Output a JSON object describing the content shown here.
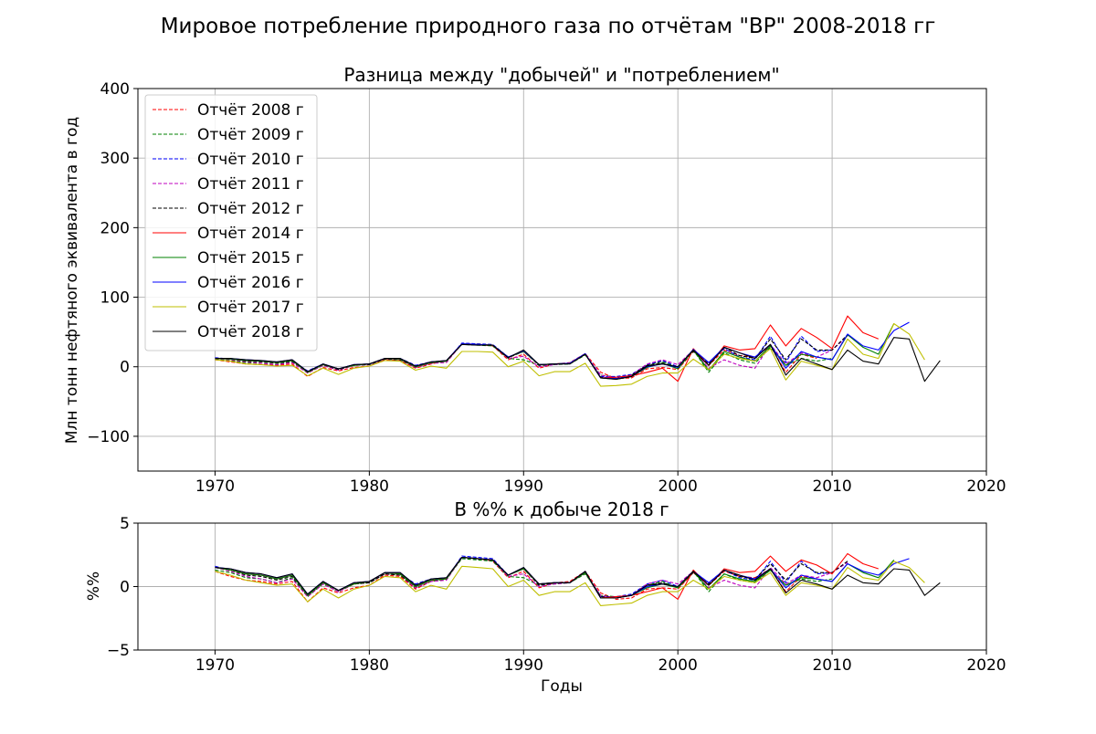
{
  "figure": {
    "suptitle": "Мировое потребление природного газа по отчётам \"BP\" 2008-2018 гг"
  },
  "series_styles": [
    {
      "name": "Отчёт 2008 г",
      "color": "#ff0000",
      "dashed": true
    },
    {
      "name": "Отчёт 2009 г",
      "color": "#008000",
      "dashed": true
    },
    {
      "name": "Отчёт 2010 г",
      "color": "#0000ff",
      "dashed": true
    },
    {
      "name": "Отчёт 2011 г",
      "color": "#bf00bf",
      "dashed": true
    },
    {
      "name": "Отчёт 2012 г",
      "color": "#000000",
      "dashed": true
    },
    {
      "name": "Отчёт 2014 г",
      "color": "#ff0000",
      "dashed": false
    },
    {
      "name": "Отчёт 2015 г",
      "color": "#008000",
      "dashed": false
    },
    {
      "name": "Отчёт 2016 г",
      "color": "#0000ff",
      "dashed": false
    },
    {
      "name": "Отчёт 2017 г",
      "color": "#bfbf00",
      "dashed": false
    },
    {
      "name": "Отчёт 2018 г",
      "color": "#000000",
      "dashed": false
    }
  ],
  "chart_data": [
    {
      "type": "line",
      "title": "Разница между \"добычей\" и \"потреблением\"",
      "xlabel": "",
      "ylabel": "Млн тонн нефтяного эквивалента в год",
      "xlim": [
        1965,
        2020
      ],
      "ylim": [
        -150,
        400
      ],
      "xticks": [
        1970,
        1980,
        1990,
        2000,
        2010,
        2020
      ],
      "yticks": [
        -100,
        0,
        100,
        200,
        300,
        400
      ],
      "ytick_labels": [
        "−100",
        "0",
        "100",
        "200",
        "300",
        "400"
      ],
      "grid": true,
      "legend": "upper-left",
      "x_start": 1970,
      "series": [
        {
          "name": "Отчёт 2008 г",
          "values": [
            10,
            7,
            4,
            3,
            2,
            4,
            -14,
            -1,
            -6,
            -1,
            1,
            10,
            9,
            -2,
            4,
            9,
            33,
            32,
            30,
            10,
            18,
            -2,
            4,
            6,
            19,
            -8,
            -17,
            -16,
            -3,
            -1,
            -4,
            22,
            2,
            24,
            16,
            14,
            30,
            -8,
            18,
            12
          ]
        },
        {
          "name": "Отчёт 2009 г",
          "values": [
            11,
            9,
            6,
            5,
            3,
            7,
            -9,
            2,
            -4,
            2,
            3,
            11,
            10,
            -1,
            5,
            8,
            32,
            31,
            30,
            12,
            10,
            2,
            3,
            4,
            17,
            -12,
            -15,
            -13,
            2,
            8,
            -1,
            24,
            -8,
            20,
            10,
            5,
            28,
            2,
            12,
            8,
            12
          ]
        },
        {
          "name": "Отчёт 2010 г",
          "values": [
            13,
            11,
            9,
            8,
            6,
            9,
            -6,
            4,
            -3,
            3,
            4,
            12,
            12,
            2,
            7,
            8,
            34,
            33,
            32,
            14,
            22,
            3,
            4,
            5,
            18,
            -14,
            -14,
            -11,
            3,
            9,
            0,
            24,
            6,
            26,
            14,
            10,
            44,
            6,
            44,
            22,
            24
          ]
        },
        {
          "name": "Отчёт 2011 г",
          "values": [
            12,
            10,
            7,
            5,
            3,
            6,
            -9,
            2,
            -5,
            2,
            3,
            11,
            10,
            -1,
            5,
            6,
            33,
            32,
            31,
            12,
            15,
            0,
            3,
            5,
            18,
            -12,
            -16,
            -12,
            4,
            10,
            3,
            24,
            -2,
            10,
            2,
            -2,
            32,
            4,
            20,
            14,
            24,
            44
          ]
        },
        {
          "name": "Отчёт 2012 г",
          "values": [
            12,
            11,
            8,
            7,
            5,
            8,
            -7,
            3,
            -4,
            2,
            3,
            11,
            10,
            0,
            6,
            8,
            33,
            32,
            31,
            13,
            22,
            2,
            4,
            5,
            18,
            -15,
            -17,
            -12,
            2,
            6,
            -2,
            22,
            4,
            28,
            16,
            12,
            40,
            10,
            40,
            24,
            24,
            46
          ]
        },
        {
          "name": "Отчёт 2014 г",
          "values": [
            12,
            11,
            9,
            8,
            6,
            9,
            -8,
            3,
            -3,
            2,
            4,
            12,
            11,
            0,
            6,
            8,
            33,
            32,
            31,
            14,
            22,
            3,
            4,
            5,
            18,
            -16,
            -15,
            -13,
            -8,
            -2,
            -21,
            26,
            2,
            30,
            24,
            26,
            60,
            30,
            55,
            42,
            26,
            73,
            49,
            40
          ]
        },
        {
          "name": "Отчёт 2015 г",
          "values": [
            12,
            11,
            9,
            8,
            6,
            9,
            -8,
            3,
            -3,
            2,
            4,
            12,
            11,
            0,
            6,
            8,
            33,
            32,
            31,
            14,
            22,
            3,
            4,
            5,
            18,
            -16,
            -18,
            -14,
            -1,
            5,
            -3,
            24,
            -5,
            22,
            14,
            8,
            30,
            2,
            18,
            14,
            10,
            46,
            28,
            18,
            62
          ]
        },
        {
          "name": "Отчёт 2016 г",
          "values": [
            12,
            12,
            10,
            9,
            7,
            10,
            -7,
            4,
            -3,
            3,
            4,
            12,
            12,
            1,
            7,
            9,
            33,
            32,
            31,
            14,
            23,
            3,
            4,
            5,
            19,
            -16,
            -17,
            -14,
            0,
            4,
            -1,
            25,
            6,
            28,
            20,
            14,
            32,
            -2,
            22,
            14,
            10,
            47,
            30,
            24,
            52,
            64
          ]
        },
        {
          "name": "Отчёт 2017 г",
          "values": [
            10,
            8,
            4,
            3,
            1,
            2,
            -13,
            -2,
            -11,
            -2,
            1,
            9,
            8,
            -5,
            1,
            -2,
            22,
            22,
            21,
            0,
            8,
            -13,
            -7,
            -7,
            5,
            -28,
            -27,
            -25,
            -14,
            -9,
            -9,
            11,
            -4,
            18,
            12,
            8,
            26,
            -19,
            8,
            2,
            -4,
            40,
            18,
            12,
            62,
            47,
            10
          ]
        },
        {
          "name": "Отчёт 2018 г",
          "values": [
            12,
            12,
            10,
            9,
            7,
            10,
            -7,
            4,
            -3,
            3,
            4,
            12,
            12,
            1,
            7,
            9,
            32,
            31,
            31,
            13,
            24,
            3,
            4,
            4,
            18,
            -16,
            -18,
            -14,
            1,
            4,
            0,
            24,
            2,
            28,
            20,
            12,
            32,
            -12,
            12,
            4,
            -4,
            24,
            8,
            4,
            42,
            40,
            -21,
            9
          ]
        }
      ]
    },
    {
      "type": "line",
      "title": "В %% к добыче 2018 г",
      "xlabel": "Годы",
      "ylabel": "%%",
      "xlim": [
        1965,
        2020
      ],
      "ylim": [
        -5,
        5
      ],
      "xticks": [
        1970,
        1980,
        1990,
        2000,
        2010,
        2020
      ],
      "yticks": [
        -5,
        0,
        5
      ],
      "ytick_labels": [
        "−5",
        "0",
        "5"
      ],
      "grid": true,
      "legend": "none",
      "x_start": 1970,
      "series": [
        {
          "name": "Отчёт 2008 г",
          "values": [
            1.2,
            0.8,
            0.5,
            0.4,
            0.2,
            0.4,
            -1.2,
            -0.1,
            -0.5,
            -0.1,
            0.1,
            0.9,
            0.8,
            -0.2,
            0.4,
            0.7,
            2.3,
            2.2,
            2.0,
            0.7,
            1.2,
            -0.1,
            0.3,
            0.4,
            1.2,
            -0.5,
            -1.0,
            -0.9,
            -0.2,
            -0.1,
            -0.2,
            1.1,
            0.1,
            1.2,
            0.8,
            0.7,
            1.4,
            -0.4,
            0.8,
            0.6
          ]
        },
        {
          "name": "Отчёт 2009 г",
          "values": [
            1.3,
            1.1,
            0.7,
            0.6,
            0.3,
            0.7,
            -0.8,
            0.2,
            -0.4,
            0.2,
            0.3,
            1.0,
            0.9,
            -0.1,
            0.4,
            0.6,
            2.2,
            2.1,
            2.0,
            0.8,
            0.7,
            0.1,
            0.2,
            0.3,
            1.0,
            -0.7,
            -0.8,
            -0.7,
            0.1,
            0.4,
            -0.1,
            1.2,
            -0.4,
            1.0,
            0.5,
            0.3,
            1.3,
            0.1,
            0.6,
            0.4,
            0.6
          ]
        },
        {
          "name": "Отчёт 2010 г",
          "values": [
            1.6,
            1.3,
            1.0,
            0.9,
            0.6,
            0.9,
            -0.6,
            0.4,
            -0.3,
            0.3,
            0.4,
            1.1,
            1.0,
            0.2,
            0.6,
            0.6,
            2.4,
            2.3,
            2.2,
            0.9,
            1.4,
            0.2,
            0.3,
            0.3,
            1.1,
            -0.8,
            -0.8,
            -0.6,
            0.2,
            0.5,
            0.0,
            1.2,
            0.3,
            1.3,
            0.7,
            0.5,
            2.0,
            0.3,
            2.0,
            1.0,
            1.1
          ]
        },
        {
          "name": "Отчёт 2011 г",
          "values": [
            1.5,
            1.2,
            0.8,
            0.6,
            0.3,
            0.6,
            -0.8,
            0.2,
            -0.4,
            0.2,
            0.3,
            1.0,
            0.9,
            -0.1,
            0.4,
            0.5,
            2.3,
            2.2,
            2.1,
            0.8,
            1.0,
            0.0,
            0.2,
            0.3,
            1.1,
            -0.7,
            -0.9,
            -0.7,
            0.2,
            0.5,
            0.2,
            1.2,
            -0.1,
            0.5,
            0.1,
            -0.1,
            1.5,
            0.2,
            0.9,
            0.7,
            1.1,
            1.9
          ]
        },
        {
          "name": "Отчёт 2012 г",
          "values": [
            1.5,
            1.3,
            0.9,
            0.8,
            0.5,
            0.8,
            -0.7,
            0.3,
            -0.3,
            0.2,
            0.3,
            1.0,
            0.9,
            0.0,
            0.5,
            0.6,
            2.3,
            2.2,
            2.1,
            0.9,
            1.4,
            0.1,
            0.3,
            0.3,
            1.1,
            -0.8,
            -0.9,
            -0.7,
            0.1,
            0.3,
            -0.1,
            1.1,
            0.2,
            1.3,
            0.8,
            0.6,
            1.8,
            0.5,
            1.8,
            1.1,
            1.1,
            2.0
          ]
        },
        {
          "name": "Отчёт 2014 г",
          "values": [
            1.5,
            1.3,
            1.0,
            0.9,
            0.6,
            0.9,
            -0.7,
            0.3,
            -0.3,
            0.2,
            0.4,
            1.1,
            1.0,
            0.0,
            0.5,
            0.6,
            2.3,
            2.2,
            2.1,
            0.9,
            1.4,
            0.2,
            0.3,
            0.3,
            1.1,
            -0.9,
            -0.8,
            -0.7,
            -0.4,
            -0.1,
            -1.0,
            1.3,
            0.1,
            1.4,
            1.1,
            1.2,
            2.4,
            1.2,
            2.1,
            1.7,
            1.0,
            2.6,
            1.8,
            1.4
          ]
        },
        {
          "name": "Отчёт 2015 г",
          "values": [
            1.5,
            1.3,
            1.0,
            0.9,
            0.6,
            0.9,
            -0.7,
            0.3,
            -0.3,
            0.2,
            0.4,
            1.1,
            1.0,
            0.0,
            0.5,
            0.6,
            2.3,
            2.2,
            2.1,
            0.9,
            1.4,
            0.2,
            0.3,
            0.3,
            1.1,
            -0.9,
            -0.9,
            -0.7,
            -0.1,
            0.2,
            -0.1,
            1.2,
            -0.2,
            1.0,
            0.6,
            0.4,
            1.3,
            0.1,
            0.7,
            0.6,
            0.4,
            1.8,
            1.1,
            0.7,
            2.1
          ]
        },
        {
          "name": "Отчёт 2016 г",
          "values": [
            1.5,
            1.4,
            1.1,
            1.0,
            0.7,
            1.0,
            -0.6,
            0.4,
            -0.3,
            0.3,
            0.4,
            1.1,
            1.1,
            0.1,
            0.6,
            0.7,
            2.3,
            2.2,
            2.1,
            0.9,
            1.5,
            0.2,
            0.3,
            0.3,
            1.2,
            -0.9,
            -0.9,
            -0.7,
            0.0,
            0.2,
            0.0,
            1.2,
            0.3,
            1.3,
            0.9,
            0.6,
            1.4,
            -0.1,
            0.9,
            0.6,
            0.4,
            1.8,
            1.2,
            0.9,
            1.8,
            2.2
          ]
        },
        {
          "name": "Отчёт 2017 г",
          "values": [
            1.2,
            0.9,
            0.5,
            0.3,
            0.1,
            0.2,
            -1.2,
            -0.2,
            -0.9,
            -0.2,
            0.1,
            0.8,
            0.7,
            -0.4,
            0.1,
            -0.2,
            1.6,
            1.5,
            1.4,
            0.0,
            0.5,
            -0.7,
            -0.4,
            -0.4,
            0.3,
            -1.5,
            -1.4,
            -1.3,
            -0.7,
            -0.4,
            -0.4,
            0.5,
            -0.2,
            0.8,
            0.5,
            0.3,
            1.1,
            -0.7,
            0.3,
            0.1,
            -0.2,
            1.5,
            0.7,
            0.5,
            2.0,
            1.5,
            0.3
          ]
        },
        {
          "name": "Отчёт 2018 г",
          "values": [
            1.5,
            1.4,
            1.1,
            1.0,
            0.7,
            1.0,
            -0.6,
            0.4,
            -0.3,
            0.3,
            0.4,
            1.1,
            1.1,
            0.1,
            0.6,
            0.7,
            2.3,
            2.2,
            2.1,
            0.9,
            1.5,
            0.2,
            0.3,
            0.3,
            1.2,
            -0.9,
            -0.9,
            -0.7,
            0.1,
            0.2,
            0.0,
            1.2,
            0.1,
            1.3,
            0.9,
            0.5,
            1.4,
            -0.5,
            0.5,
            0.2,
            -0.2,
            0.9,
            0.3,
            0.2,
            1.4,
            1.3,
            -0.7,
            0.3
          ]
        }
      ]
    }
  ]
}
